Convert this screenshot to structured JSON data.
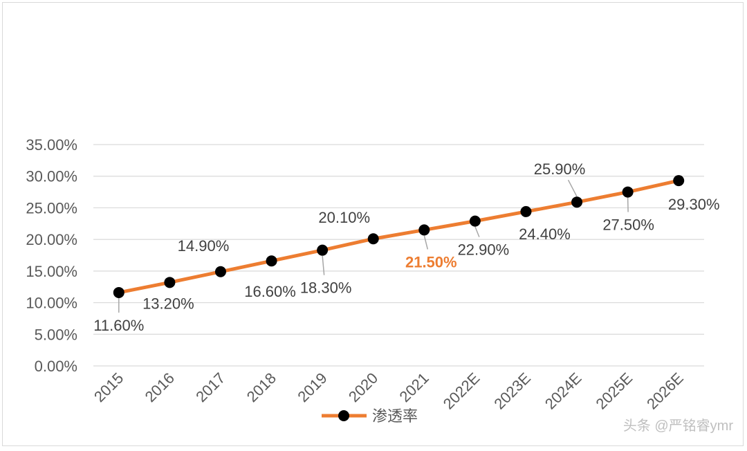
{
  "chart_data": {
    "type": "line",
    "categories": [
      "2015",
      "2016",
      "2017",
      "2018",
      "2019",
      "2020",
      "2021",
      "2022E",
      "2023E",
      "2024E",
      "2025E",
      "2026E"
    ],
    "series": [
      {
        "name": "渗透率",
        "values": [
          11.6,
          13.2,
          14.9,
          16.6,
          18.3,
          20.1,
          21.5,
          22.9,
          24.4,
          25.9,
          27.5,
          29.3
        ],
        "labels": [
          "11.60%",
          "13.20%",
          "14.90%",
          "16.60%",
          "18.30%",
          "20.10%",
          "21.50%",
          "22.90%",
          "24.40%",
          "25.90%",
          "27.50%",
          "29.30%"
        ],
        "highlight_index": 6
      }
    ],
    "yticks": [
      "0.00%",
      "5.00%",
      "10.00%",
      "15.00%",
      "20.00%",
      "25.00%",
      "30.00%",
      "35.00%"
    ],
    "ylim": [
      0,
      35
    ],
    "grid": true,
    "legend": "bottom-center",
    "colors": {
      "line": "#ED7D31",
      "marker": "#000000",
      "highlight_label": "#ED7D31",
      "grid": "#d9d9d9"
    }
  },
  "watermark": "头条 @严铭睿ymr"
}
